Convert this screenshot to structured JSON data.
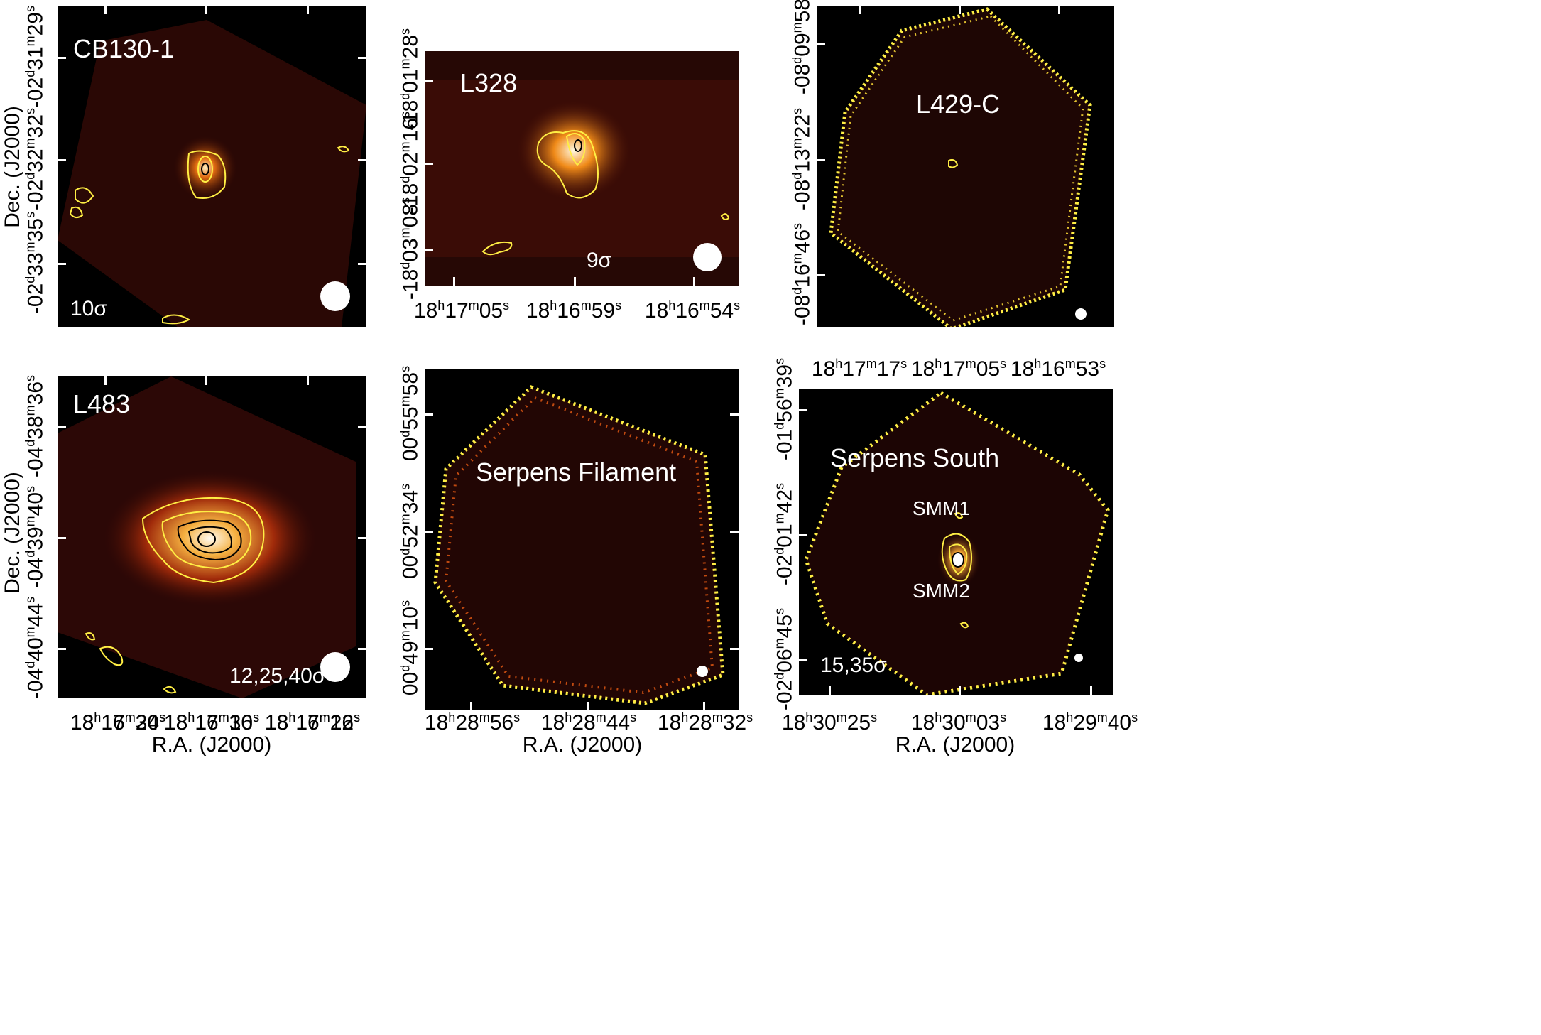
{
  "figure": {
    "panels": [
      {
        "id": "cb130",
        "label": "CB130-1",
        "sigma": "10σ",
        "xticks": [
          {
            "h": "18",
            "m": "16",
            "s": "20"
          },
          {
            "h": "18",
            "m": "16",
            "s": "16"
          },
          {
            "h": "18",
            "m": "16",
            "s": "12"
          }
        ],
        "yticks": [
          {
            "d": "-02",
            "m": "31",
            "s": "29"
          },
          {
            "d": "-02",
            "m": "32",
            "s": "32"
          },
          {
            "d": "-02",
            "m": "33",
            "s": "35"
          }
        ]
      },
      {
        "id": "l328",
        "label": "L328",
        "sigma": "9σ",
        "xticks": [
          {
            "h": "18",
            "m": "17",
            "s": "05"
          },
          {
            "h": "18",
            "m": "16",
            "s": "59"
          },
          {
            "h": "18",
            "m": "16",
            "s": "54"
          }
        ],
        "yticks": [
          {
            "d": "-18",
            "m": "01",
            "s": "28"
          },
          {
            "d": "-18",
            "m": "02",
            "s": "16"
          },
          {
            "d": "-18",
            "m": "03",
            "s": "08"
          }
        ]
      },
      {
        "id": "l429",
        "label": "L429-C",
        "sigma": "",
        "xticks": [
          {
            "h": "18",
            "m": "17",
            "s": "17"
          },
          {
            "h": "18",
            "m": "17",
            "s": "05"
          },
          {
            "h": "18",
            "m": "16",
            "s": "53"
          }
        ],
        "yticks": [
          {
            "d": "-08",
            "m": "09",
            "s": "58"
          },
          {
            "d": "-08",
            "m": "13",
            "s": "22"
          },
          {
            "d": "-08",
            "m": "16",
            "s": "46"
          }
        ]
      },
      {
        "id": "l483",
        "label": "L483",
        "sigma": "12,25,40σ",
        "xticks": [
          {
            "h": "18",
            "m": "17",
            "s": "34"
          },
          {
            "h": "18",
            "m": "17",
            "s": "30"
          },
          {
            "h": "18",
            "m": "17",
            "s": "26"
          }
        ],
        "yticks": [
          {
            "d": "-04",
            "m": "38",
            "s": "36"
          },
          {
            "d": "-04",
            "m": "39",
            "s": "40"
          },
          {
            "d": "-04",
            "m": "40",
            "s": "44"
          }
        ]
      },
      {
        "id": "serpfil",
        "label": "Serpens Filament",
        "sigma": "",
        "xticks": [
          {
            "h": "18",
            "m": "28",
            "s": "56"
          },
          {
            "h": "18",
            "m": "28",
            "s": "44"
          },
          {
            "h": "18",
            "m": "28",
            "s": "32"
          }
        ],
        "yticks": [
          {
            "d": "00",
            "m": "55",
            "s": "58"
          },
          {
            "d": "00",
            "m": "52",
            "s": "34"
          },
          {
            "d": "00",
            "m": "49",
            "s": "10"
          }
        ]
      },
      {
        "id": "serpsouth",
        "label": "Serpens South",
        "sigma": "15,35σ",
        "sources": [
          "SMM1",
          "SMM2"
        ],
        "xticks": [
          {
            "h": "18",
            "m": "30",
            "s": "25"
          },
          {
            "h": "18",
            "m": "30",
            "s": "03"
          },
          {
            "h": "18",
            "m": "29",
            "s": "40"
          }
        ],
        "yticks": [
          {
            "d": "-01",
            "m": "56",
            "s": "39"
          },
          {
            "d": "-02",
            "m": "01",
            "s": "42"
          },
          {
            "d": "-02",
            "m": "06",
            "s": "45"
          }
        ]
      }
    ],
    "axis_titles": {
      "dec": "Dec. (J2000)",
      "ra": "R.A. (J2000)"
    },
    "colors": {
      "background": "#000000",
      "contour_yellow": "#ffee44",
      "contour_black": "#000000",
      "map_peak": "#fff6d8",
      "map_mid": "#e07a10",
      "map_low": "#3a0a04"
    }
  }
}
